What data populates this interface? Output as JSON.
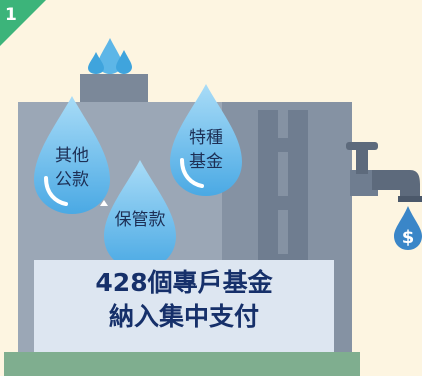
{
  "badge": {
    "number": "1",
    "color": "#3cb47a"
  },
  "drops": {
    "other": {
      "line1": "其他",
      "line2": "公款"
    },
    "special": {
      "line1": "特種",
      "line2": "基金"
    },
    "custody": {
      "line1": "保管款"
    }
  },
  "banner": {
    "line1": "428個專戶基金",
    "line2": "納入集中支付"
  },
  "icons": {
    "faucet": "faucet-icon",
    "coin_drop": "dollar-drop-icon"
  },
  "colors": {
    "background": "#fdf5e1",
    "tank": "#9aa6b4",
    "water": "#63b7e8",
    "banner_bg": "#dde6f1",
    "banner_text": "#16306a",
    "base": "#7fae8f"
  }
}
